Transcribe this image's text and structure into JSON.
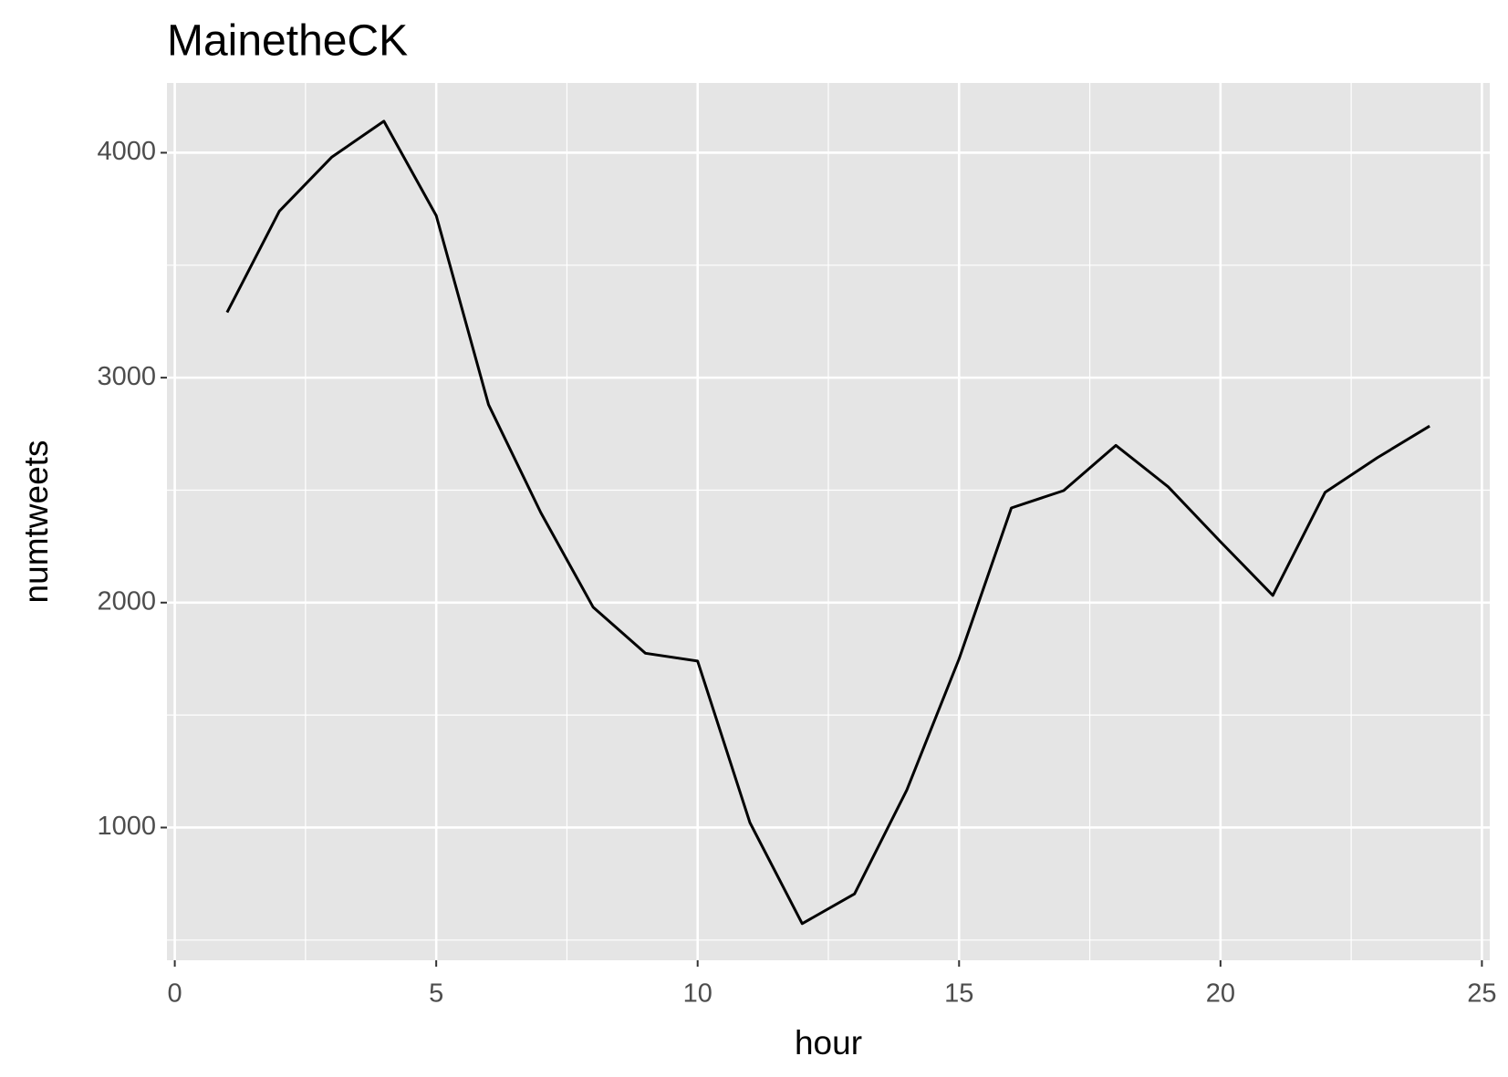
{
  "chart_data": {
    "type": "line",
    "title": "MainetheCK",
    "x_label": "hour",
    "y_label": "numtweets",
    "x": [
      1,
      2,
      3,
      4,
      5,
      6,
      7,
      8,
      9,
      10,
      11,
      12,
      13,
      14,
      15,
      16,
      17,
      18,
      19,
      20,
      21,
      22,
      23,
      24
    ],
    "series": [
      {
        "color": "#000000",
        "values": [
          3290,
          3740,
          3980,
          4140,
          3720,
          2880,
          2400,
          1980,
          1775,
          1740,
          1022,
          573,
          705,
          1167,
          1750,
          2421,
          2498,
          2699,
          2515,
          2271,
          2032,
          2490,
          2644,
          2785
        ]
      }
    ],
    "xlim": [
      -0.15,
      25.15
    ],
    "ylim": [
      410,
      4310
    ],
    "xticks": [
      0,
      5,
      10,
      15,
      20,
      25
    ],
    "yticks": [
      1000,
      2000,
      3000,
      4000
    ],
    "grid": true,
    "minor_grid": true
  }
}
